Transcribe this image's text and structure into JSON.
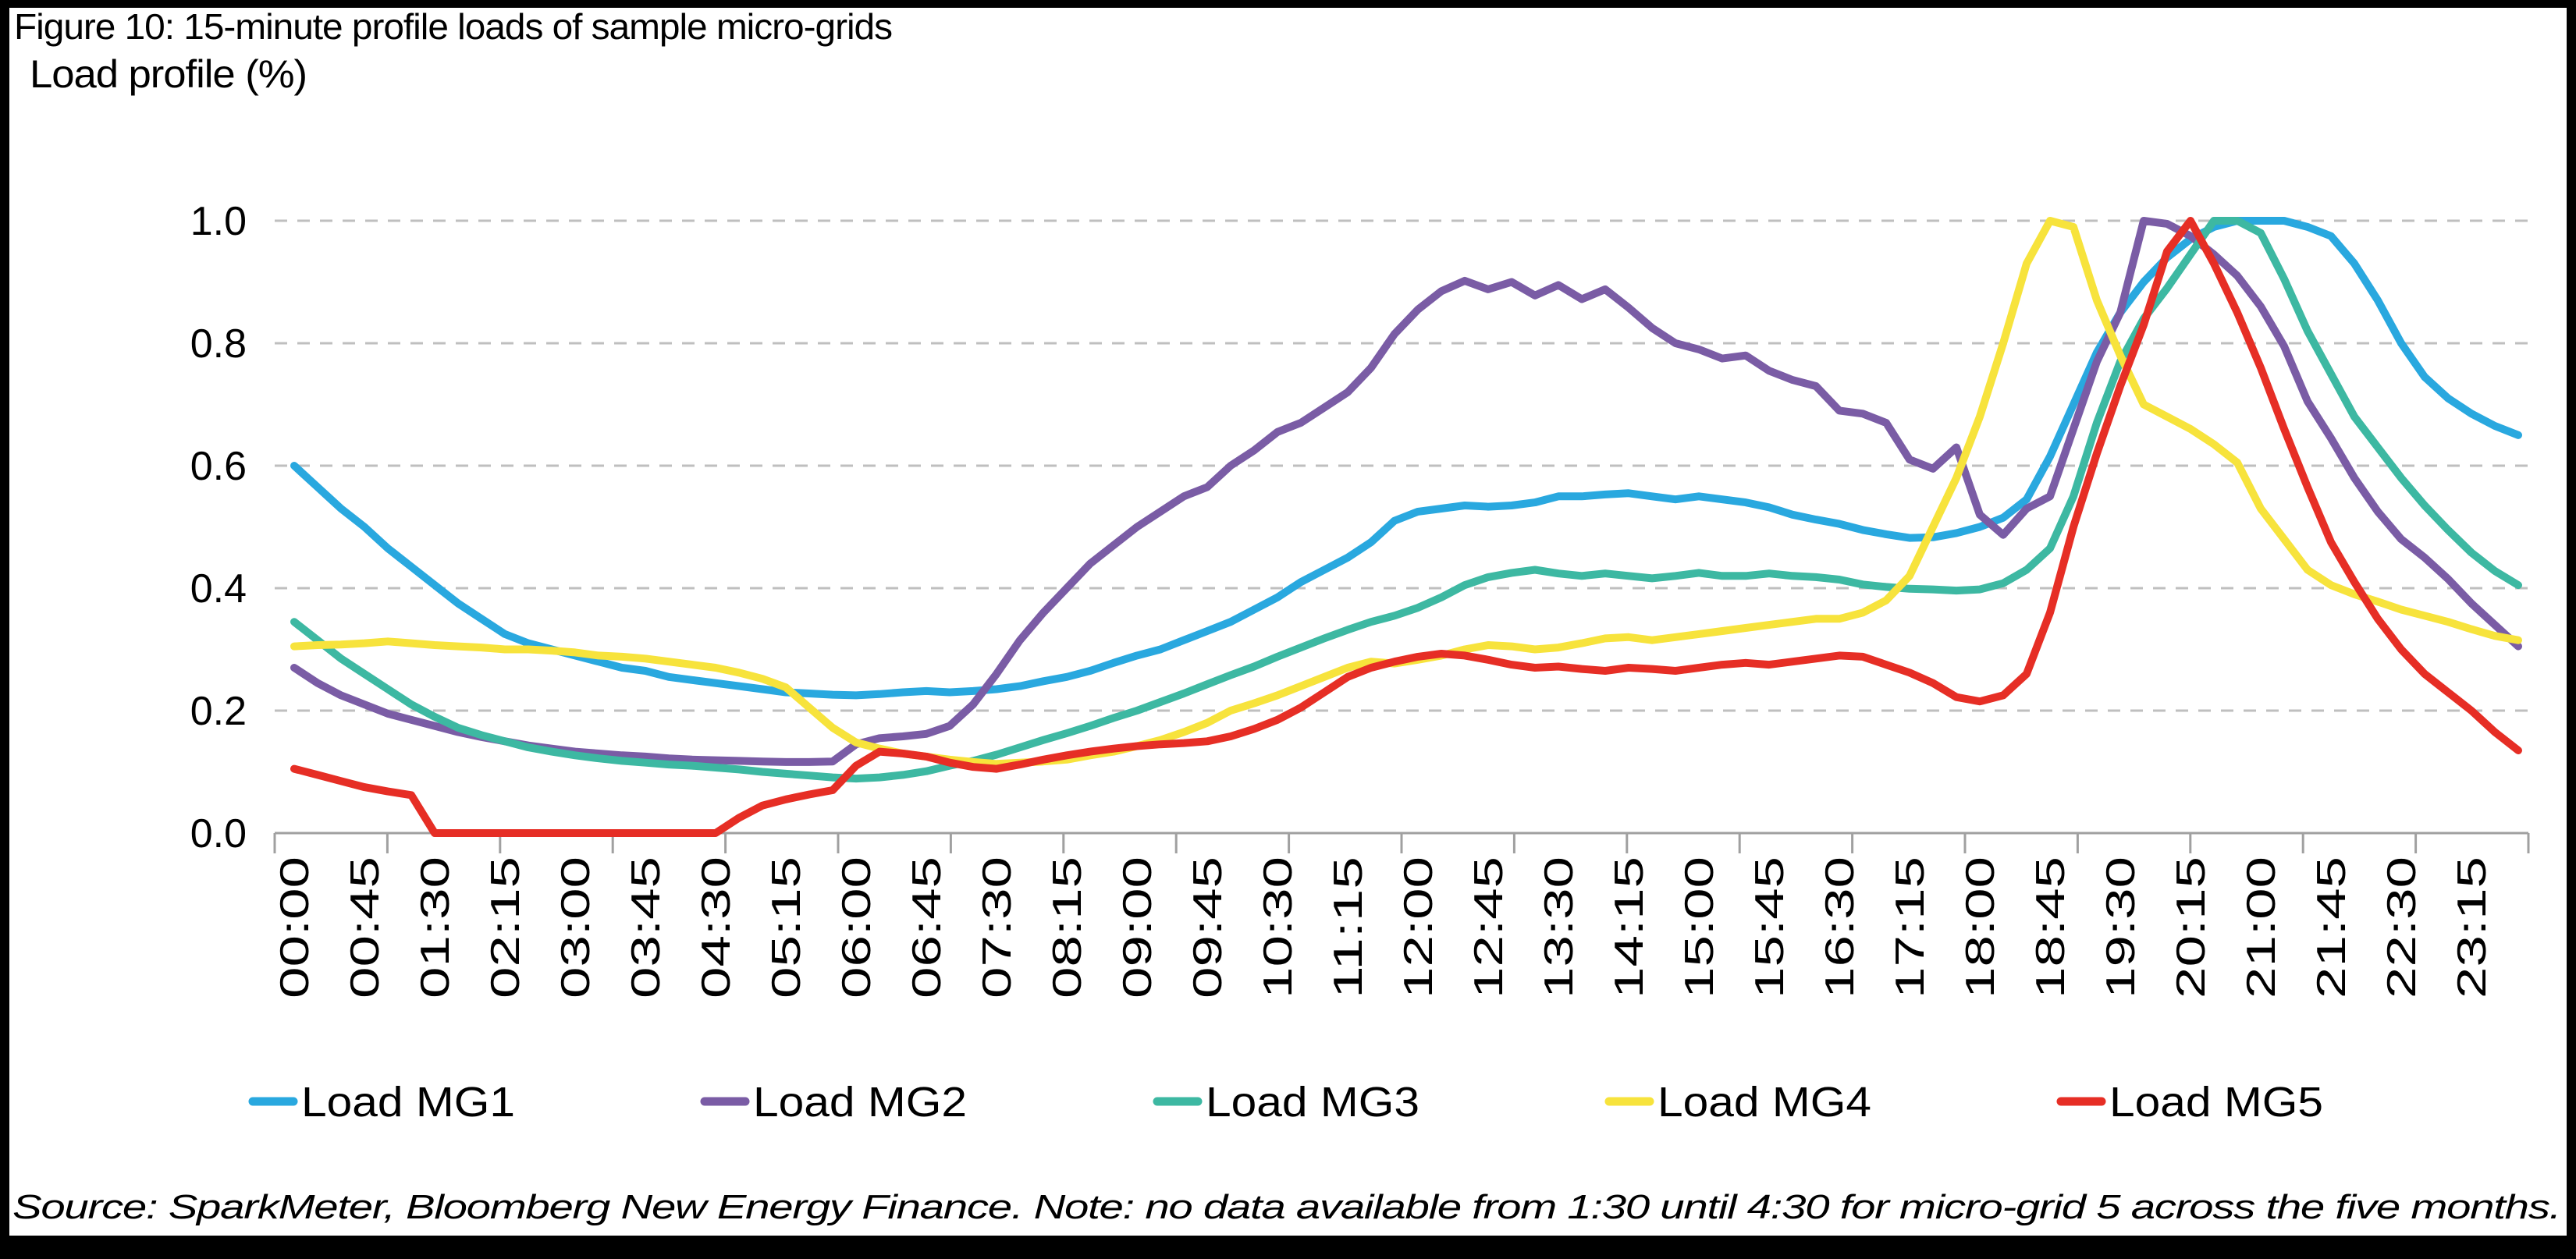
{
  "figure": {
    "title": "Figure 10: 15-minute profile loads of sample micro-grids",
    "y_axis_title": "Load profile (%)",
    "source_note": "Source: SparkMeter, Bloomberg New Energy Finance. Note: no data available from 1:30 until 4:30 for micro-grid 5 across the five months."
  },
  "chart_data": {
    "type": "line",
    "title": "Figure 10: 15-minute profile loads of sample micro-grids",
    "xlabel": "",
    "ylabel": "Load profile (%)",
    "ylim": [
      0.0,
      1.0
    ],
    "grid": "horizontal-dashed",
    "legend_position": "bottom",
    "y_ticks": [
      {
        "label": "1.0",
        "value": 1.0
      },
      {
        "label": "0.8",
        "value": 0.8
      },
      {
        "label": "0.6",
        "value": 0.6
      },
      {
        "label": "0.4",
        "value": 0.4
      },
      {
        "label": "0.2",
        "value": 0.2
      },
      {
        "label": "0.0",
        "value": 0.0
      }
    ],
    "x_tick_labels": [
      "00:00",
      "00:45",
      "01:30",
      "02:15",
      "03:00",
      "03:45",
      "04:30",
      "05:15",
      "06:00",
      "06:45",
      "07:30",
      "08:15",
      "09:00",
      "09:45",
      "10:30",
      "11:15",
      "12:00",
      "12:45",
      "13:30",
      "14:15",
      "15:00",
      "15:45",
      "16:30",
      "17:15",
      "18:00",
      "18:45",
      "19:30",
      "20:15",
      "21:00",
      "21:45",
      "22:30",
      "23:15"
    ],
    "x_interval_minutes": 15,
    "x_times": [
      "00:00",
      "00:15",
      "00:30",
      "00:45",
      "01:00",
      "01:15",
      "01:30",
      "01:45",
      "02:00",
      "02:15",
      "02:30",
      "02:45",
      "03:00",
      "03:15",
      "03:30",
      "03:45",
      "04:00",
      "04:15",
      "04:30",
      "04:45",
      "05:00",
      "05:15",
      "05:30",
      "05:45",
      "06:00",
      "06:15",
      "06:30",
      "06:45",
      "07:00",
      "07:15",
      "07:30",
      "07:45",
      "08:00",
      "08:15",
      "08:30",
      "08:45",
      "09:00",
      "09:15",
      "09:30",
      "09:45",
      "10:00",
      "10:15",
      "10:30",
      "10:45",
      "11:00",
      "11:15",
      "11:30",
      "11:45",
      "12:00",
      "12:15",
      "12:30",
      "12:45",
      "13:00",
      "13:15",
      "13:30",
      "13:45",
      "14:00",
      "14:15",
      "14:30",
      "14:45",
      "15:00",
      "15:15",
      "15:30",
      "15:45",
      "16:00",
      "16:15",
      "16:30",
      "16:45",
      "17:00",
      "17:15",
      "17:30",
      "17:45",
      "18:00",
      "18:15",
      "18:30",
      "18:45",
      "19:00",
      "19:15",
      "19:30",
      "19:45",
      "20:00",
      "20:15",
      "20:30",
      "20:45",
      "21:00",
      "21:15",
      "21:30",
      "21:45",
      "22:00",
      "22:15",
      "22:30",
      "22:45",
      "23:00",
      "23:15",
      "23:30",
      "23:45"
    ],
    "series": [
      {
        "name": "Load MG1",
        "color": "#29A8DF",
        "values": [
          0.6,
          0.565,
          0.53,
          0.5,
          0.465,
          0.435,
          0.405,
          0.375,
          0.35,
          0.325,
          0.31,
          0.3,
          0.29,
          0.28,
          0.27,
          0.265,
          0.255,
          0.25,
          0.245,
          0.24,
          0.235,
          0.23,
          0.228,
          0.226,
          0.225,
          0.227,
          0.23,
          0.232,
          0.23,
          0.232,
          0.235,
          0.24,
          0.248,
          0.255,
          0.265,
          0.278,
          0.29,
          0.3,
          0.315,
          0.33,
          0.345,
          0.365,
          0.385,
          0.41,
          0.43,
          0.45,
          0.475,
          0.51,
          0.525,
          0.53,
          0.535,
          0.533,
          0.535,
          0.54,
          0.55,
          0.55,
          0.553,
          0.555,
          0.55,
          0.545,
          0.55,
          0.545,
          0.54,
          0.532,
          0.52,
          0.512,
          0.505,
          0.495,
          0.488,
          0.482,
          0.483,
          0.49,
          0.5,
          0.515,
          0.545,
          0.615,
          0.7,
          0.785,
          0.85,
          0.9,
          0.94,
          0.97,
          0.99,
          1.0,
          1.0,
          1.0,
          0.99,
          0.975,
          0.93,
          0.87,
          0.8,
          0.745,
          0.71,
          0.685,
          0.665,
          0.65
        ]
      },
      {
        "name": "Load MG2",
        "color": "#7A5CA5",
        "values": [
          0.27,
          0.245,
          0.225,
          0.21,
          0.195,
          0.185,
          0.175,
          0.165,
          0.157,
          0.15,
          0.143,
          0.138,
          0.133,
          0.13,
          0.127,
          0.125,
          0.122,
          0.12,
          0.119,
          0.118,
          0.117,
          0.116,
          0.116,
          0.117,
          0.145,
          0.155,
          0.158,
          0.162,
          0.175,
          0.21,
          0.26,
          0.315,
          0.36,
          0.4,
          0.44,
          0.47,
          0.5,
          0.525,
          0.55,
          0.565,
          0.6,
          0.625,
          0.655,
          0.67,
          0.695,
          0.72,
          0.76,
          0.815,
          0.855,
          0.885,
          0.902,
          0.888,
          0.9,
          0.878,
          0.895,
          0.872,
          0.888,
          0.858,
          0.825,
          0.8,
          0.79,
          0.775,
          0.78,
          0.755,
          0.74,
          0.73,
          0.69,
          0.685,
          0.67,
          0.61,
          0.595,
          0.63,
          0.52,
          0.487,
          0.53,
          0.55,
          0.66,
          0.77,
          0.85,
          1.0,
          0.995,
          0.975,
          0.945,
          0.91,
          0.86,
          0.795,
          0.705,
          0.645,
          0.58,
          0.525,
          0.48,
          0.45,
          0.415,
          0.375,
          0.34,
          0.305
        ]
      },
      {
        "name": "Load MG3",
        "color": "#3DB8A2",
        "values": [
          0.345,
          0.315,
          0.285,
          0.26,
          0.235,
          0.21,
          0.19,
          0.172,
          0.16,
          0.15,
          0.14,
          0.133,
          0.127,
          0.122,
          0.118,
          0.115,
          0.112,
          0.11,
          0.107,
          0.104,
          0.1,
          0.097,
          0.094,
          0.091,
          0.089,
          0.091,
          0.095,
          0.101,
          0.11,
          0.118,
          0.128,
          0.14,
          0.152,
          0.163,
          0.175,
          0.188,
          0.2,
          0.214,
          0.228,
          0.243,
          0.258,
          0.272,
          0.288,
          0.303,
          0.318,
          0.332,
          0.345,
          0.355,
          0.368,
          0.385,
          0.405,
          0.418,
          0.425,
          0.43,
          0.424,
          0.42,
          0.424,
          0.42,
          0.416,
          0.42,
          0.425,
          0.42,
          0.42,
          0.424,
          0.42,
          0.418,
          0.414,
          0.406,
          0.402,
          0.399,
          0.398,
          0.396,
          0.398,
          0.408,
          0.43,
          0.465,
          0.55,
          0.67,
          0.77,
          0.84,
          0.89,
          0.945,
          1.0,
          1.0,
          0.98,
          0.905,
          0.82,
          0.75,
          0.68,
          0.63,
          0.58,
          0.535,
          0.495,
          0.458,
          0.428,
          0.405
        ]
      },
      {
        "name": "Load MG4",
        "color": "#F7E33C",
        "values": [
          0.305,
          0.307,
          0.308,
          0.31,
          0.313,
          0.31,
          0.307,
          0.305,
          0.303,
          0.3,
          0.3,
          0.298,
          0.295,
          0.29,
          0.288,
          0.285,
          0.28,
          0.275,
          0.27,
          0.262,
          0.252,
          0.238,
          0.205,
          0.172,
          0.148,
          0.138,
          0.13,
          0.125,
          0.12,
          0.116,
          0.113,
          0.115,
          0.117,
          0.12,
          0.127,
          0.133,
          0.142,
          0.152,
          0.165,
          0.18,
          0.2,
          0.212,
          0.225,
          0.24,
          0.255,
          0.27,
          0.28,
          0.277,
          0.283,
          0.29,
          0.3,
          0.307,
          0.305,
          0.3,
          0.303,
          0.31,
          0.318,
          0.32,
          0.315,
          0.32,
          0.325,
          0.33,
          0.335,
          0.34,
          0.345,
          0.35,
          0.35,
          0.36,
          0.38,
          0.42,
          0.5,
          0.58,
          0.68,
          0.8,
          0.93,
          1.0,
          0.99,
          0.87,
          0.78,
          0.7,
          0.68,
          0.66,
          0.635,
          0.605,
          0.53,
          0.48,
          0.43,
          0.405,
          0.39,
          0.378,
          0.365,
          0.355,
          0.345,
          0.333,
          0.322,
          0.315
        ]
      },
      {
        "name": "Load MG5",
        "color": "#E62E25",
        "values": [
          0.105,
          0.095,
          0.085,
          0.075,
          0.068,
          0.062,
          0.0,
          0.0,
          0.0,
          0.0,
          0.0,
          0.0,
          0.0,
          0.0,
          0.0,
          0.0,
          0.0,
          0.0,
          0.0,
          0.025,
          0.045,
          0.055,
          0.063,
          0.07,
          0.11,
          0.133,
          0.13,
          0.125,
          0.115,
          0.108,
          0.105,
          0.112,
          0.12,
          0.127,
          0.133,
          0.138,
          0.142,
          0.145,
          0.147,
          0.15,
          0.158,
          0.17,
          0.185,
          0.205,
          0.23,
          0.255,
          0.27,
          0.28,
          0.288,
          0.293,
          0.29,
          0.283,
          0.275,
          0.27,
          0.272,
          0.268,
          0.265,
          0.27,
          0.268,
          0.265,
          0.27,
          0.275,
          0.278,
          0.275,
          0.28,
          0.285,
          0.29,
          0.288,
          0.275,
          0.262,
          0.245,
          0.222,
          0.215,
          0.225,
          0.26,
          0.36,
          0.5,
          0.62,
          0.73,
          0.83,
          0.95,
          1.0,
          0.93,
          0.85,
          0.76,
          0.66,
          0.565,
          0.475,
          0.41,
          0.35,
          0.3,
          0.26,
          0.23,
          0.2,
          0.165,
          0.135
        ]
      }
    ]
  },
  "style": {
    "background": "#FFFFFF",
    "frame_color": "#000000",
    "gridline_color": "#BFBFBF",
    "axis_color": "#A0A0A0",
    "text_color": "#000000"
  }
}
